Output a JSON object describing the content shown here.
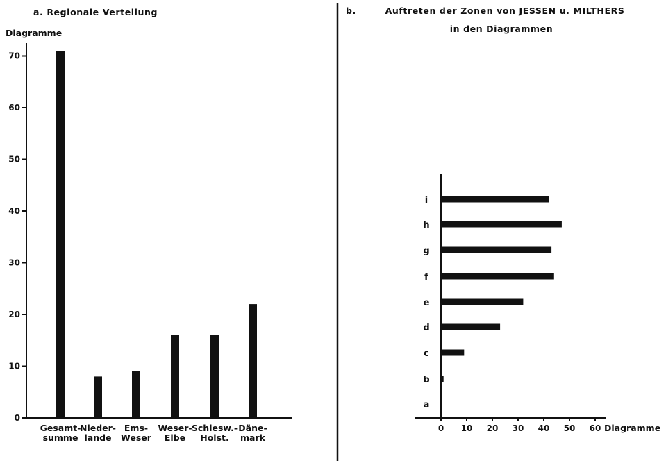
{
  "chart_data": [
    {
      "type": "bar",
      "orientation": "vertical",
      "title": "a.  Regionale Verteilung",
      "ylabel": "Diagramme",
      "categories": [
        [
          "Gesamt-",
          "summe"
        ],
        [
          "Nieder-",
          "lande"
        ],
        [
          "Ems-",
          "Weser"
        ],
        [
          "Weser-",
          "Elbe"
        ],
        [
          "Schlesw.-",
          "Holst."
        ],
        [
          "Däne-",
          "mark"
        ]
      ],
      "values": [
        71,
        8,
        9,
        16,
        16,
        22
      ],
      "ylim": [
        0,
        72
      ],
      "yticks": [
        0,
        10,
        20,
        30,
        40,
        50,
        60,
        70
      ],
      "grid": false,
      "legend": "none"
    },
    {
      "type": "bar",
      "orientation": "horizontal",
      "title": "b.",
      "subtitle": [
        "Auftreten der Zonen von JESSEN u. MILTHERS",
        "in den Diagrammen"
      ],
      "xlabel": "Diagramme",
      "categories": [
        "i",
        "h",
        "g",
        "f",
        "e",
        "d",
        "c",
        "b",
        "a"
      ],
      "values": [
        42,
        47,
        43,
        44,
        32,
        23,
        9,
        1,
        0
      ],
      "xlim": [
        0,
        60
      ],
      "xticks": [
        0,
        10,
        20,
        30,
        40,
        50,
        60
      ],
      "grid": false,
      "legend": "none"
    }
  ],
  "colors": {
    "ink": "#111111",
    "background": "#ffffff"
  }
}
